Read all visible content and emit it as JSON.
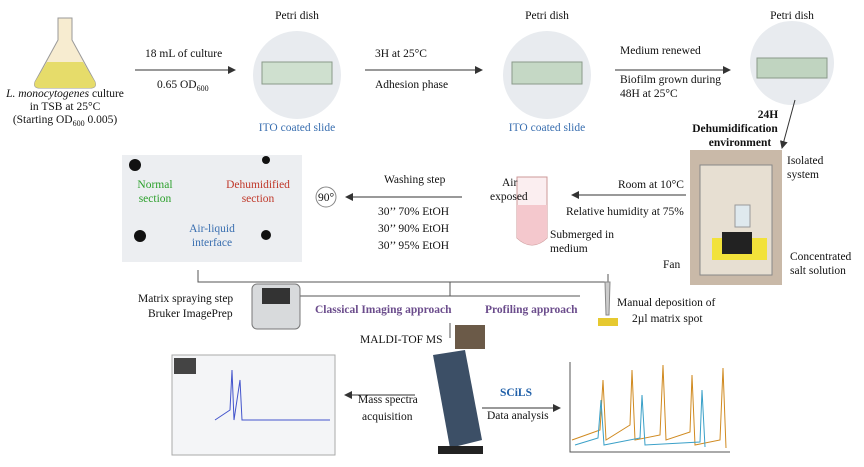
{
  "culture": {
    "species": "L. monocytogenes",
    "line1_rest": " culture",
    "line2": "in TSB at 25°C",
    "line3_a": "(Starting OD",
    "line3_sub": "600",
    "line3_b": " 0.005)"
  },
  "step1": {
    "top": "18 mL of culture",
    "bottom_a": "0.65 OD",
    "bottom_sub": "600"
  },
  "petri": {
    "labels": [
      "Petri dish",
      "Petri dish",
      "Petri dish"
    ],
    "slides": [
      "ITO coated slide",
      "ITO coated slide"
    ]
  },
  "step2": {
    "top": "3H at 25°C",
    "bottom": "Adhesion phase"
  },
  "step3": {
    "top": "Medium renewed",
    "bottom1": "Biofilm grown during",
    "bottom2": "48H at 25°C"
  },
  "dehum": {
    "time": "24H",
    "line1": "Dehumidification",
    "line2": "environment"
  },
  "box": {
    "isolated1": "Isolated",
    "isolated2": "system",
    "fan": "Fan",
    "salt1": "Concentrated",
    "salt2": "salt solution"
  },
  "room": {
    "temp": "Room at 10°C",
    "humidity": "Relative humidity at 75%"
  },
  "tube": {
    "air1": "Air",
    "air2": "exposed",
    "sub1": "Submerged in",
    "sub2": "medium"
  },
  "washing": {
    "title": "Washing step",
    "steps": [
      "30’’ 70% EtOH",
      "30’’ 90% EtOH",
      "30’’ 95% EtOH"
    ],
    "rotation": "90°"
  },
  "slide": {
    "normal1": "Normal",
    "normal2": "section",
    "dehum1": "Dehumidified",
    "dehum2": "section",
    "interface1": "Air-liquid",
    "interface2": "interface"
  },
  "matrix": {
    "step": "Matrix spraying step",
    "device": "Bruker ImagePrep"
  },
  "approaches": {
    "imaging": "Classical Imaging approach",
    "profiling": "Profiling approach"
  },
  "manual": {
    "line1": "Manual deposition of",
    "line2": "2µl matrix spot"
  },
  "instrument": "MALDI-TOF MS",
  "acquisition": {
    "line1": "Mass spectra",
    "line2": "acquisition"
  },
  "analysis": {
    "logo": "SCiLS",
    "label": "Data analysis"
  }
}
